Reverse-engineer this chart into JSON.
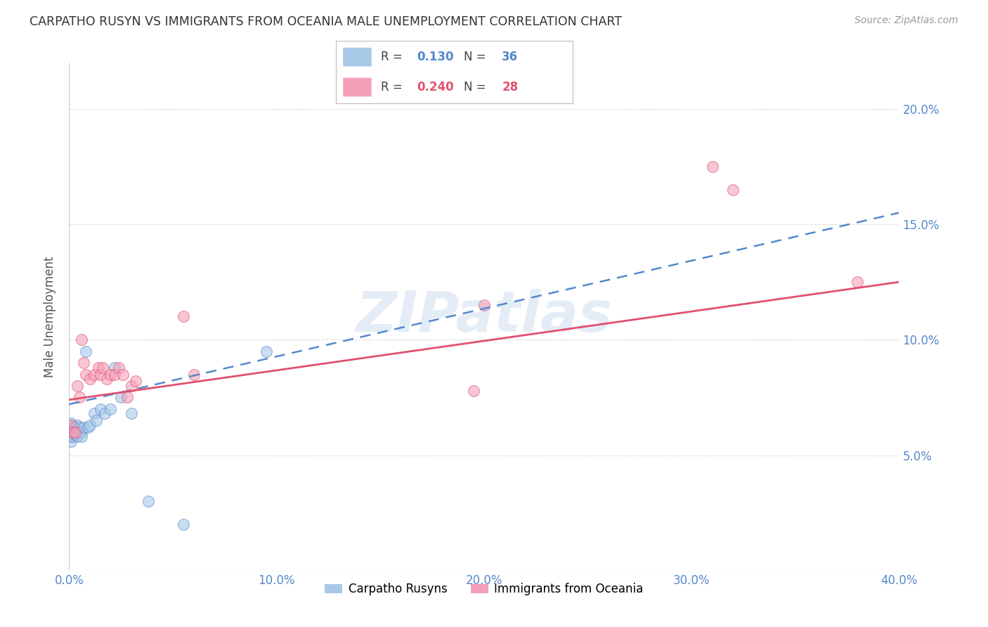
{
  "title": "CARPATHO RUSYN VS IMMIGRANTS FROM OCEANIA MALE UNEMPLOYMENT CORRELATION CHART",
  "source": "Source: ZipAtlas.com",
  "ylabel": "Male Unemployment",
  "watermark": "ZIPatlas",
  "series1_label": "Carpatho Rusyns",
  "series2_label": "Immigrants from Oceania",
  "series1_R": "0.130",
  "series1_N": "36",
  "series2_R": "0.240",
  "series2_N": "28",
  "series1_color": "#a8c8e8",
  "series2_color": "#f5a0b8",
  "series1_line_color": "#5588cc",
  "series2_line_color": "#e05070",
  "background_color": "#ffffff",
  "grid_color": "#dddddd",
  "xlim": [
    0.0,
    0.4
  ],
  "ylim": [
    0.0,
    0.22
  ],
  "xticks": [
    0.0,
    0.1,
    0.2,
    0.3,
    0.4
  ],
  "yticks": [
    0.05,
    0.1,
    0.15,
    0.2
  ],
  "series1_x": [
    0.001,
    0.001,
    0.001,
    0.001,
    0.001,
    0.001,
    0.002,
    0.002,
    0.002,
    0.002,
    0.002,
    0.003,
    0.003,
    0.003,
    0.004,
    0.004,
    0.004,
    0.005,
    0.005,
    0.006,
    0.006,
    0.007,
    0.008,
    0.009,
    0.01,
    0.012,
    0.013,
    0.015,
    0.017,
    0.02,
    0.022,
    0.025,
    0.03,
    0.038,
    0.055,
    0.095
  ],
  "series1_y": [
    0.06,
    0.062,
    0.063,
    0.064,
    0.058,
    0.056,
    0.062,
    0.06,
    0.059,
    0.061,
    0.058,
    0.062,
    0.06,
    0.059,
    0.061,
    0.063,
    0.058,
    0.06,
    0.062,
    0.06,
    0.058,
    0.062,
    0.095,
    0.062,
    0.063,
    0.068,
    0.065,
    0.07,
    0.068,
    0.07,
    0.088,
    0.075,
    0.068,
    0.03,
    0.02,
    0.095
  ],
  "series2_x": [
    0.001,
    0.002,
    0.003,
    0.004,
    0.005,
    0.006,
    0.007,
    0.008,
    0.01,
    0.012,
    0.014,
    0.015,
    0.016,
    0.018,
    0.02,
    0.022,
    0.024,
    0.026,
    0.028,
    0.03,
    0.032,
    0.055,
    0.06,
    0.195,
    0.2,
    0.31,
    0.32,
    0.38
  ],
  "series2_y": [
    0.063,
    0.06,
    0.06,
    0.08,
    0.075,
    0.1,
    0.09,
    0.085,
    0.083,
    0.085,
    0.088,
    0.085,
    0.088,
    0.083,
    0.085,
    0.085,
    0.088,
    0.085,
    0.075,
    0.08,
    0.082,
    0.11,
    0.085,
    0.078,
    0.115,
    0.175,
    0.165,
    0.125
  ],
  "trend1_x0": 0.0,
  "trend1_y0": 0.072,
  "trend1_x1": 0.4,
  "trend1_y1": 0.155,
  "trend2_x0": 0.0,
  "trend2_y0": 0.074,
  "trend2_x1": 0.4,
  "trend2_y1": 0.125
}
